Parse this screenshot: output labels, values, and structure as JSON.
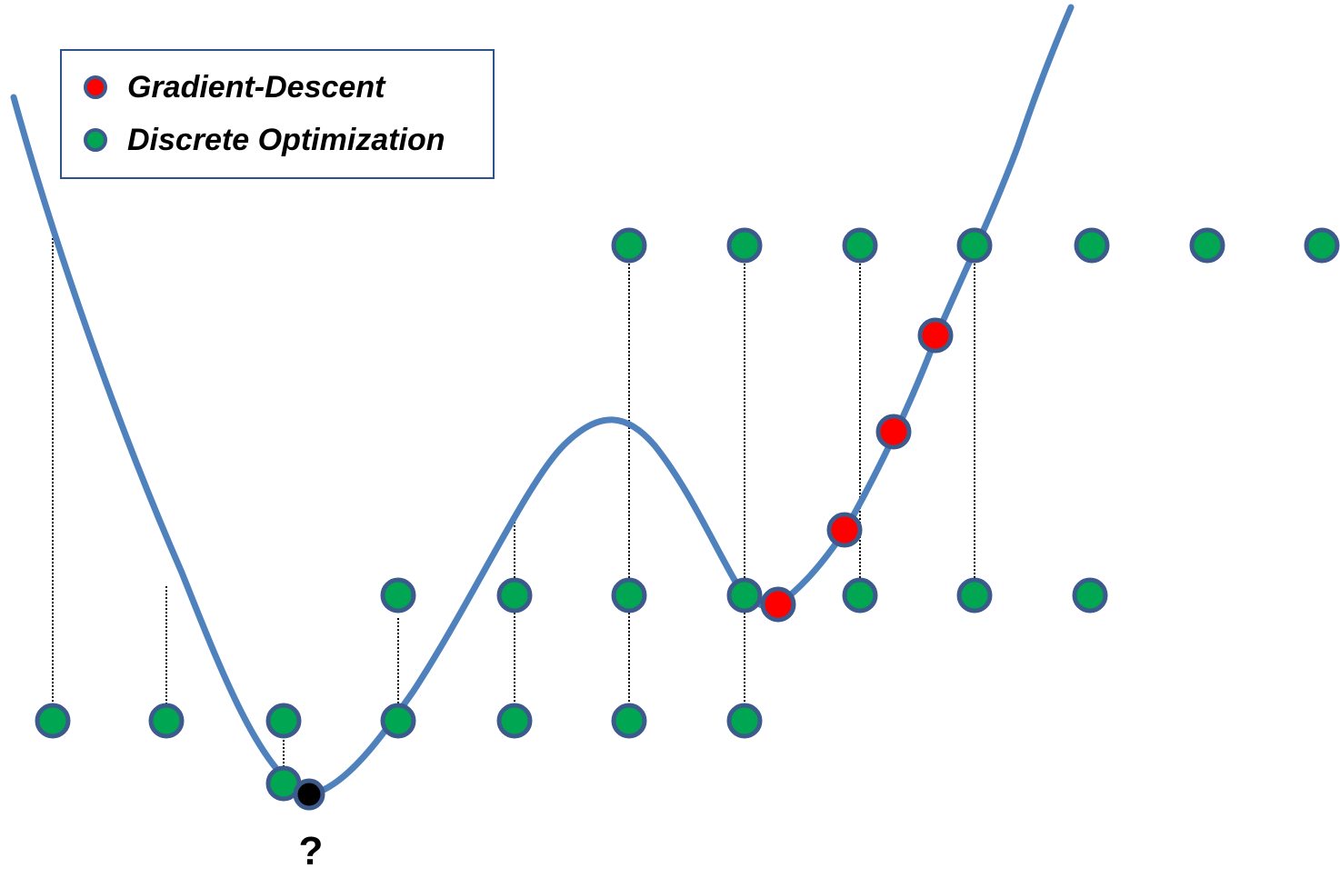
{
  "legend": {
    "items": [
      {
        "label": "Gradient-Descent",
        "color": "#FF0000",
        "icon": "red-circle-icon"
      },
      {
        "label": "Discrete Optimization",
        "color": "#00A651",
        "icon": "green-circle-icon"
      }
    ]
  },
  "annotation": {
    "unknown_minimum_label": "?"
  },
  "colors": {
    "curve": "#4F81BD",
    "marker_outline": "#3C5A8C",
    "gradient_descent": "#FF0000",
    "discrete": "#00A651",
    "global_minimum": "#000000",
    "drop_lines": "#000000"
  }
}
